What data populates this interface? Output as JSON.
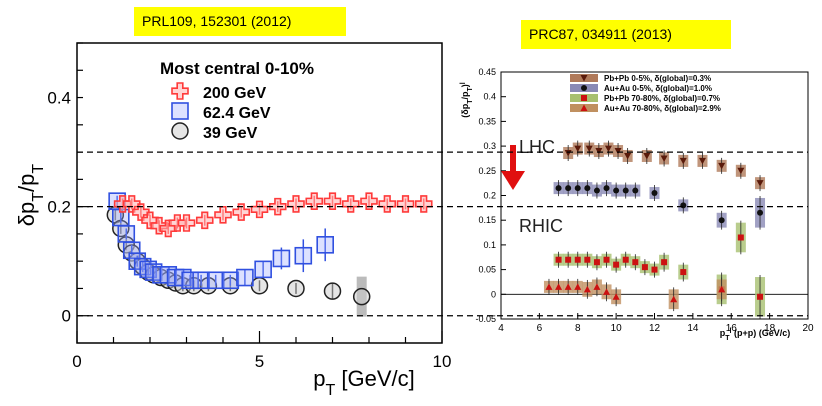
{
  "refs": {
    "left": "PRL109, 152301 (2012)",
    "right": "PRC87, 034911 (2013)"
  },
  "chart_data": [
    {
      "type": "scatter",
      "title": "",
      "xlabel": "p_T [GeV/c]",
      "ylabel": "δp_T/p_T",
      "xlim": [
        0,
        10
      ],
      "ylim": [
        -0.05,
        0.5
      ],
      "xticks": [
        "0",
        "5",
        "10"
      ],
      "yticks": [
        "0",
        "0.2",
        "0.4"
      ],
      "legend": {
        "title": "Most central 0-10%",
        "placement": "top-center"
      },
      "series": [
        {
          "name": "200 GeV",
          "marker": "open-cross",
          "color": "#ff3a3a",
          "x": [
            1.25,
            1.5,
            1.75,
            2.0,
            2.25,
            2.5,
            2.75,
            3.0,
            3.5,
            4.0,
            4.5,
            5.0,
            5.5,
            6.0,
            6.5,
            7.0,
            7.5,
            8.0,
            8.5,
            9.0,
            9.5
          ],
          "y": [
            0.205,
            0.205,
            0.19,
            0.175,
            0.165,
            0.16,
            0.17,
            0.17,
            0.175,
            0.185,
            0.19,
            0.195,
            0.2,
            0.205,
            0.21,
            0.21,
            0.205,
            0.21,
            0.205,
            0.205,
            0.205
          ],
          "err": [
            0.01,
            0.01,
            0.01,
            0.01,
            0.01,
            0.01,
            0.01,
            0.01,
            0.01,
            0.01,
            0.01,
            0.01,
            0.01,
            0.01,
            0.01,
            0.01,
            0.01,
            0.01,
            0.01,
            0.01,
            0.01
          ]
        },
        {
          "name": "62.4 GeV",
          "marker": "open-square",
          "color": "#3050e0",
          "x": [
            1.1,
            1.2,
            1.35,
            1.5,
            1.65,
            1.8,
            1.95,
            2.1,
            2.3,
            2.5,
            2.7,
            2.9,
            3.1,
            3.4,
            3.8,
            4.2,
            4.6,
            5.1,
            5.6,
            6.2,
            6.8
          ],
          "y": [
            0.21,
            0.18,
            0.15,
            0.12,
            0.1,
            0.09,
            0.085,
            0.08,
            0.075,
            0.075,
            0.07,
            0.07,
            0.065,
            0.065,
            0.065,
            0.065,
            0.07,
            0.085,
            0.105,
            0.11,
            0.13
          ],
          "err": [
            0.01,
            0.01,
            0.01,
            0.01,
            0.01,
            0.01,
            0.01,
            0.01,
            0.01,
            0.01,
            0.01,
            0.01,
            0.01,
            0.01,
            0.01,
            0.01,
            0.015,
            0.015,
            0.02,
            0.03,
            0.03
          ]
        },
        {
          "name": "39 GeV",
          "marker": "open-circle",
          "color": "#222222",
          "x": [
            1.05,
            1.2,
            1.35,
            1.5,
            1.65,
            1.8,
            1.95,
            2.1,
            2.3,
            2.5,
            2.7,
            2.9,
            3.2,
            3.6,
            4.2,
            5.0,
            6.0,
            7.0,
            7.8
          ],
          "y": [
            0.185,
            0.16,
            0.13,
            0.115,
            0.1,
            0.09,
            0.08,
            0.075,
            0.07,
            0.065,
            0.06,
            0.055,
            0.055,
            0.055,
            0.055,
            0.055,
            0.05,
            0.045,
            0.035
          ],
          "err": [
            0.01,
            0.01,
            0.01,
            0.01,
            0.01,
            0.01,
            0.01,
            0.01,
            0.01,
            0.01,
            0.01,
            0.01,
            0.01,
            0.01,
            0.01,
            0.01,
            0.01,
            0.015,
            0.03
          ]
        }
      ],
      "reference_lines": [
        0.3,
        0.2,
        0.0
      ]
    },
    {
      "type": "scatter",
      "title": "",
      "xlabel": "p_T^l (p+p) (GeV/c)",
      "ylabel": "(δp_T/p_T)^l",
      "xlim": [
        4,
        20
      ],
      "ylim": [
        -0.05,
        0.45
      ],
      "xticks": [
        "4",
        "6",
        "8",
        "10",
        "12",
        "14",
        "16",
        "18",
        "20"
      ],
      "yticks": [
        "-0.05",
        "0",
        "0.05",
        "0.1",
        "0.15",
        "0.2",
        "0.25",
        "0.3",
        "0.35",
        "0.4",
        "0.45"
      ],
      "legend_placement": "top-right",
      "annotations": [
        "LHC",
        "RHIC"
      ],
      "series": [
        {
          "name": "Pb+Pb 0-5%, δ(global)=0.3%",
          "marker": "down-triangle",
          "color": "#5a1a0a",
          "band": "#b07a5a",
          "x": [
            7.5,
            8.0,
            8.6,
            9.1,
            9.6,
            10.1,
            10.6,
            11.6,
            12.5,
            13.5,
            14.5,
            15.5,
            16.5,
            17.5
          ],
          "y": [
            0.286,
            0.295,
            0.295,
            0.29,
            0.295,
            0.29,
            0.28,
            0.28,
            0.275,
            0.27,
            0.27,
            0.26,
            0.25,
            0.225
          ],
          "err": [
            0.005,
            0.005,
            0.005,
            0.005,
            0.005,
            0.005,
            0.005,
            0.005,
            0.005,
            0.005,
            0.005,
            0.005,
            0.01,
            0.01
          ]
        },
        {
          "name": "Au+Au 0-5%, δ(global)=1.0%",
          "marker": "circle",
          "color": "#111111",
          "band": "#8a8ab5",
          "x": [
            7.0,
            7.5,
            8.0,
            8.5,
            9.0,
            9.5,
            10.0,
            10.5,
            11.0,
            12.0,
            13.5,
            15.5,
            17.5
          ],
          "y": [
            0.215,
            0.215,
            0.215,
            0.215,
            0.21,
            0.215,
            0.21,
            0.21,
            0.21,
            0.205,
            0.18,
            0.15,
            0.165
          ],
          "err": [
            0.005,
            0.005,
            0.005,
            0.005,
            0.005,
            0.005,
            0.005,
            0.005,
            0.005,
            0.008,
            0.01,
            0.015,
            0.03
          ]
        },
        {
          "name": "Pb+Pb 70-80%, δ(global)=0.7%",
          "marker": "square",
          "color": "#cc1111",
          "band": "#a8c070",
          "x": [
            7.0,
            7.5,
            8.0,
            8.5,
            9.0,
            9.5,
            10.0,
            10.5,
            11.0,
            11.5,
            12.0,
            12.5,
            13.5,
            15.5,
            16.5,
            17.5
          ],
          "y": [
            0.07,
            0.07,
            0.07,
            0.07,
            0.065,
            0.07,
            0.06,
            0.07,
            0.065,
            0.055,
            0.05,
            0.065,
            0.045,
            0.01,
            0.115,
            -0.005
          ],
          "err": [
            0.008,
            0.008,
            0.008,
            0.008,
            0.008,
            0.008,
            0.008,
            0.008,
            0.008,
            0.01,
            0.01,
            0.015,
            0.015,
            0.03,
            0.03,
            0.04
          ]
        },
        {
          "name": "Au+Au 70-80%, δ(global)=2.9%",
          "marker": "up-triangle",
          "color": "#cc1111",
          "band": "#c09060",
          "x": [
            6.5,
            7.0,
            7.5,
            8.0,
            8.5,
            9.0,
            9.5,
            10.0,
            13.0,
            15.5
          ],
          "y": [
            0.015,
            0.015,
            0.015,
            0.015,
            0.01,
            0.015,
            0.005,
            -0.005,
            -0.01,
            0.01
          ],
          "err": [
            0.01,
            0.01,
            0.01,
            0.01,
            0.015,
            0.015,
            0.015,
            0.015,
            0.02,
            0.02
          ]
        }
      ]
    }
  ]
}
